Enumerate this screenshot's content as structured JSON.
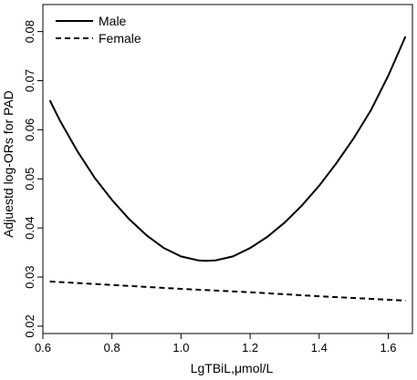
{
  "chart_data": {
    "type": "line",
    "title": "",
    "xlabel": "LgTBiL,μmol/L",
    "ylabel": "Adjuestd log-ORs for PAD",
    "xlim": [
      0.6,
      1.67
    ],
    "ylim": [
      0.0185,
      0.0855
    ],
    "x_ticks": [
      "0.6",
      "0.8",
      "1.0",
      "1.2",
      "1.4",
      "1.6"
    ],
    "y_ticks": [
      "0.02",
      "0.03",
      "0.04",
      "0.05",
      "0.06",
      "0.07",
      "0.08"
    ],
    "legend_position": "top-left",
    "grid": false,
    "series": [
      {
        "name": "Male",
        "line_style": "solid",
        "color": "#000000",
        "x": [
          0.62,
          0.65,
          0.7,
          0.75,
          0.8,
          0.85,
          0.9,
          0.95,
          1.0,
          1.05,
          1.07,
          1.1,
          1.15,
          1.2,
          1.25,
          1.3,
          1.35,
          1.4,
          1.45,
          1.5,
          1.55,
          1.6,
          1.65
        ],
        "values": [
          0.066,
          0.0618,
          0.0556,
          0.0502,
          0.0457,
          0.0418,
          0.0385,
          0.0359,
          0.0342,
          0.0334,
          0.0333,
          0.0334,
          0.0342,
          0.0359,
          0.0382,
          0.0411,
          0.0446,
          0.0486,
          0.0532,
          0.0583,
          0.064,
          0.071,
          0.079
        ]
      },
      {
        "name": "Female",
        "line_style": "dashed",
        "color": "#000000",
        "x": [
          0.62,
          0.8,
          1.0,
          1.2,
          1.4,
          1.65
        ],
        "values": [
          0.0291,
          0.0284,
          0.0276,
          0.0269,
          0.0261,
          0.0252
        ]
      }
    ]
  }
}
